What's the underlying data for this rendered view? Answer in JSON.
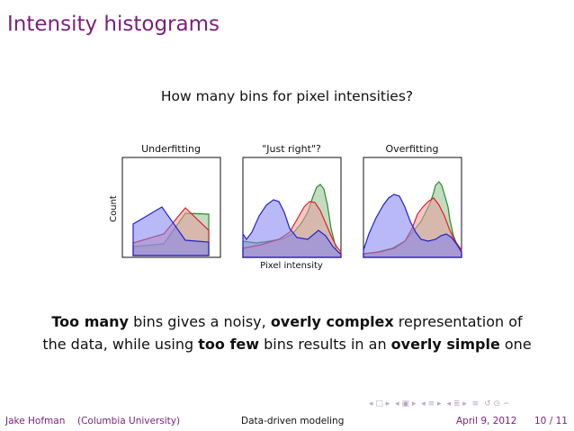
{
  "slide": {
    "title": "Intensity histograms",
    "question": "How many bins for pixel intensities?"
  },
  "figure": {
    "xlabel": "Pixel intensity",
    "ylabel": "Count",
    "panels": [
      {
        "title": "Underfitting"
      },
      {
        "title": "\"Just right\"?"
      },
      {
        "title": "Overfitting"
      }
    ]
  },
  "caption": {
    "l1a": "Too many",
    "l1b": " bins gives a noisy, ",
    "l1c": "overly complex",
    "l1d": " representation of",
    "l2a": "the data, while using ",
    "l2b": "too few",
    "l2c": " bins results in an ",
    "l2d": "overly simple",
    "l2e": " one"
  },
  "footer": {
    "author": "Jake Hofman",
    "institution": "(Columbia University)",
    "short_title": "Data-driven modeling",
    "date": "April 9, 2012",
    "page": "10 / 11"
  },
  "nav": {
    "prev_slide": "◂ □ ▸",
    "prev_frame": "◂ ▣ ▸",
    "prev_sub": "◂ ≡ ▸",
    "prev_sec": "◂ ≣ ▸",
    "toc": "≡",
    "search": "↺ ⊙ ∽"
  },
  "colors": {
    "title": "#7a1f7a",
    "blue": "#2222cc",
    "red": "#dd2222",
    "green": "#228822"
  }
}
